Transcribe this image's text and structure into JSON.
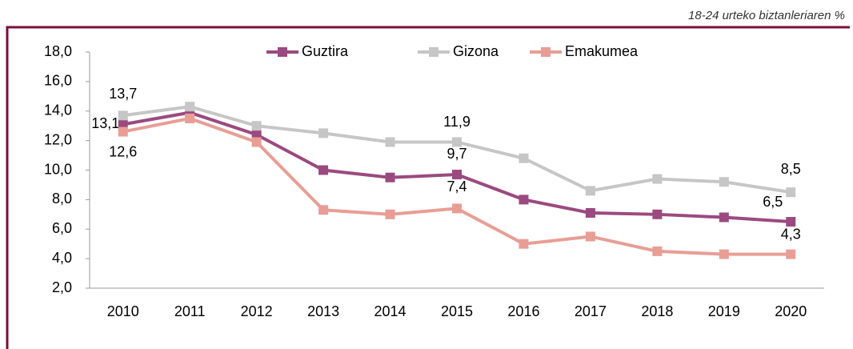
{
  "chart_data": {
    "type": "line",
    "subtitle": "18-24 urteko biztanleriaren  %",
    "categories": [
      "2010",
      "2011",
      "2012",
      "2013",
      "2014",
      "2015",
      "2016",
      "2017",
      "2018",
      "2019",
      "2020"
    ],
    "series": [
      {
        "name": "Guztira",
        "color": "#9b4a80",
        "values": [
          13.1,
          13.9,
          12.4,
          10.0,
          9.5,
          9.7,
          8.0,
          7.1,
          7.0,
          6.8,
          6.5
        ],
        "value_labels": [
          "13,1",
          null,
          null,
          null,
          null,
          "9,7",
          null,
          null,
          null,
          null,
          "6,5"
        ]
      },
      {
        "name": "Gizona",
        "color": "#c6c6c6",
        "values": [
          13.7,
          14.3,
          13.0,
          12.5,
          11.9,
          11.9,
          10.8,
          8.6,
          9.4,
          9.2,
          8.5
        ],
        "value_labels": [
          "13,7",
          null,
          null,
          null,
          null,
          "11,9",
          null,
          null,
          null,
          null,
          "8,5"
        ]
      },
      {
        "name": "Emakumea",
        "color": "#e89e95",
        "values": [
          12.6,
          13.5,
          11.9,
          7.3,
          7.0,
          7.4,
          5.0,
          5.5,
          4.5,
          4.3,
          4.3
        ],
        "value_labels": [
          "12,6",
          null,
          null,
          null,
          null,
          "7,4",
          null,
          null,
          null,
          null,
          "4,3"
        ]
      }
    ],
    "ylim": [
      2,
      18
    ],
    "yticks": [
      {
        "value": 2,
        "label": "2,0"
      },
      {
        "value": 4,
        "label": "4,0"
      },
      {
        "value": 6,
        "label": "6,0"
      },
      {
        "value": 8,
        "label": "8,0"
      },
      {
        "value": 10,
        "label": "10,0"
      },
      {
        "value": 12,
        "label": "12,0"
      },
      {
        "value": 14,
        "label": "14,0"
      },
      {
        "value": 16,
        "label": "16,0"
      },
      {
        "value": 18,
        "label": "18,0"
      }
    ],
    "legend": "top"
  }
}
